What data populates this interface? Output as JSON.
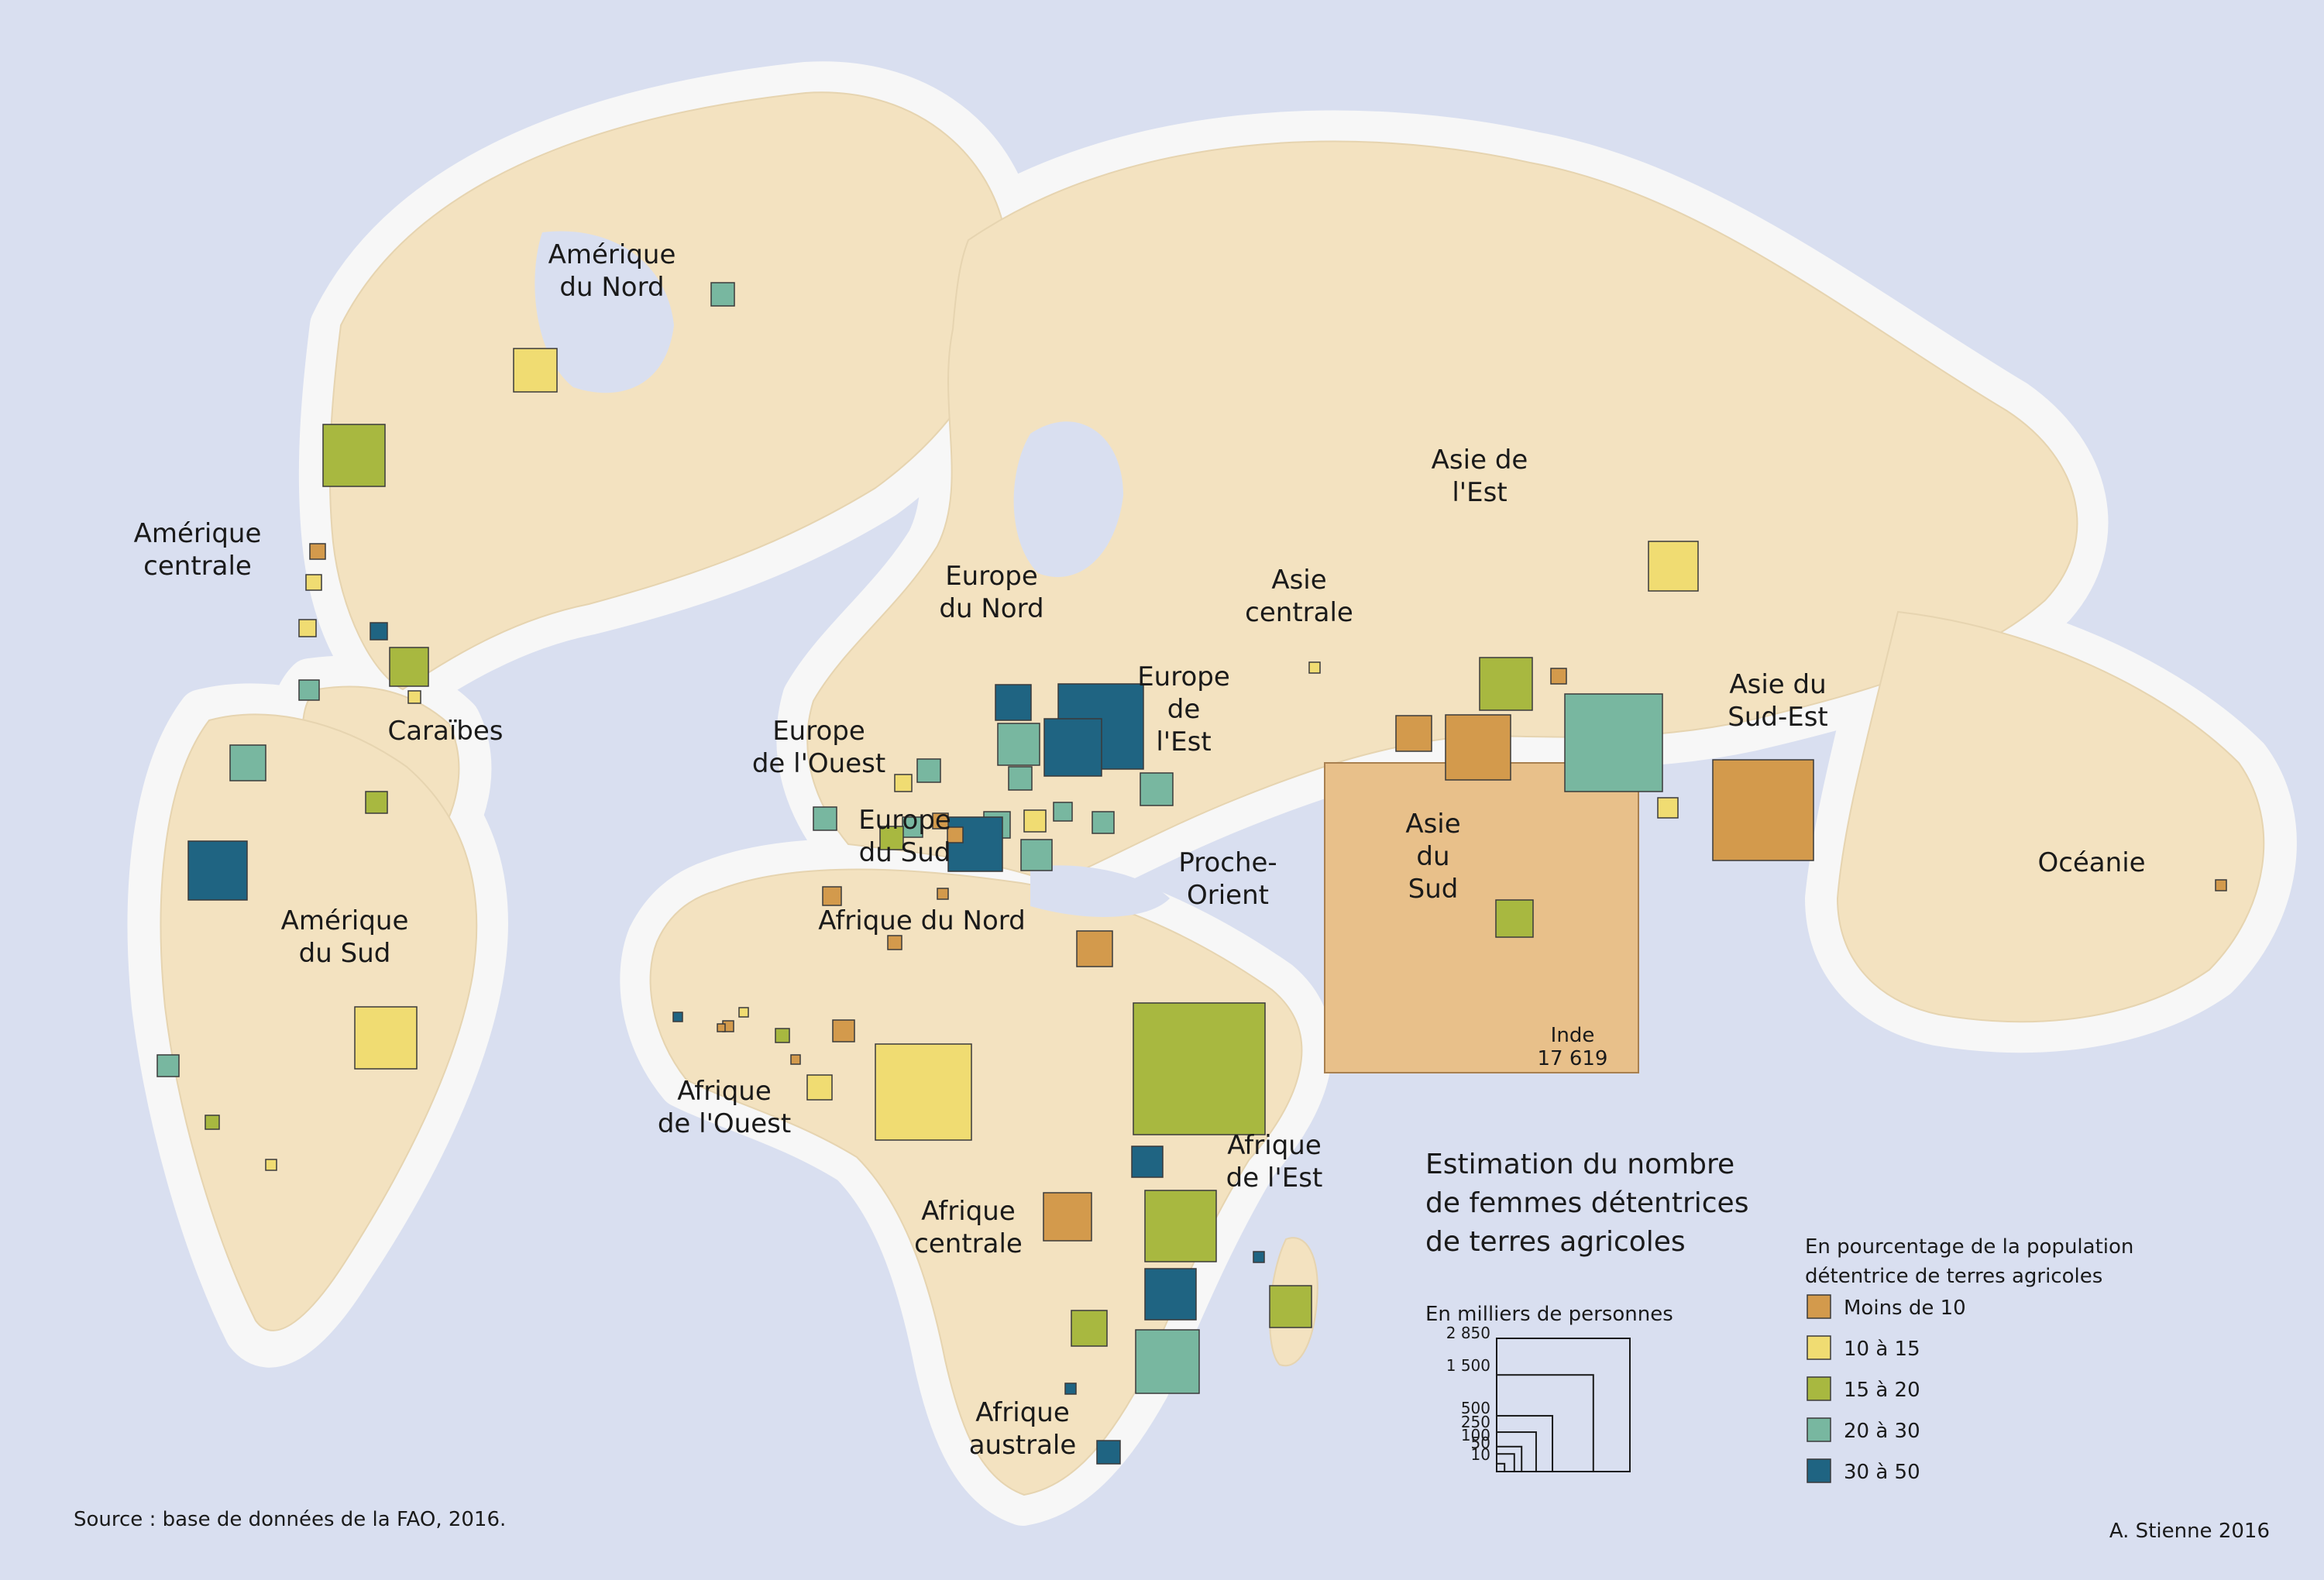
{
  "legend": {
    "title_lines": [
      "Estimation du nombre",
      "de femmes détentrices",
      "de terres agricoles"
    ],
    "size_title": "En milliers de personnes",
    "size_ticks": [
      "2 850",
      "1 500",
      "500",
      "250",
      "100",
      "50",
      "10"
    ],
    "size_values": [
      2850,
      1500,
      500,
      250,
      100,
      50,
      10
    ],
    "color_title_lines": [
      "En pourcentage de la population",
      "détentrice de terres agricoles"
    ],
    "classes": [
      {
        "label": "Moins de 10",
        "color": "#d39a4c"
      },
      {
        "label": "10 à 15",
        "color": "#f0dc72"
      },
      {
        "label": "15 à 20",
        "color": "#a8b840"
      },
      {
        "label": "20 à 30",
        "color": "#78b7a0"
      },
      {
        "label": "30 à 50",
        "color": "#1f6482"
      }
    ]
  },
  "regions": [
    {
      "key": "amn",
      "lines": [
        "Amérique",
        "du Nord"
      ]
    },
    {
      "key": "amc",
      "lines": [
        "Amérique",
        "centrale"
      ]
    },
    {
      "key": "car",
      "lines": [
        "Caraïbes"
      ]
    },
    {
      "key": "ams",
      "lines": [
        "Amérique",
        "du Sud"
      ]
    },
    {
      "key": "eun",
      "lines": [
        "Europe",
        "du Nord"
      ]
    },
    {
      "key": "euo",
      "lines": [
        "Europe",
        "de l'Ouest"
      ]
    },
    {
      "key": "eus",
      "lines": [
        "Europe",
        "du Sud"
      ]
    },
    {
      "key": "eue",
      "lines": [
        "Europe",
        "de",
        "l'Est"
      ]
    },
    {
      "key": "asc",
      "lines": [
        "Asie",
        "centrale"
      ]
    },
    {
      "key": "ase",
      "lines": [
        "Asie de",
        "l'Est"
      ]
    },
    {
      "key": "asse",
      "lines": [
        "Asie du",
        "Sud-Est"
      ]
    },
    {
      "key": "ass",
      "lines": [
        "Asie",
        "du",
        "Sud"
      ]
    },
    {
      "key": "po",
      "lines": [
        "Proche-",
        "Orient"
      ]
    },
    {
      "key": "afn",
      "lines": [
        "Afrique du Nord"
      ]
    },
    {
      "key": "afo",
      "lines": [
        "Afrique",
        "de l'Ouest"
      ]
    },
    {
      "key": "afc",
      "lines": [
        "Afrique",
        "centrale"
      ]
    },
    {
      "key": "afe",
      "lines": [
        "Afrique",
        "de l'Est"
      ]
    },
    {
      "key": "afa",
      "lines": [
        "Afrique",
        "australe"
      ]
    },
    {
      "key": "oce",
      "lines": [
        "Océanie"
      ]
    }
  ],
  "india_label": {
    "name": "Inde",
    "value": "17 619"
  },
  "source": "Source : base de données de la FAO, 2016.",
  "signature": "A. Stienne 2016",
  "colors": {
    "ocean": "#d9dff0",
    "land": "#f3e2c0",
    "coast": "#fbfbfb",
    "india": "#e8c08a"
  }
}
